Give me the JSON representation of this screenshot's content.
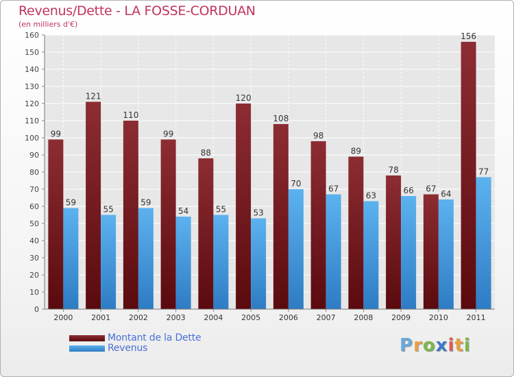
{
  "chart_data": {
    "type": "bar",
    "title": "Revenus/Dette - LA FOSSE-CORDUAN",
    "subtitle": "(en milliers d'€)",
    "xlabel": "",
    "ylabel": "",
    "categories": [
      "2000",
      "2001",
      "2002",
      "2003",
      "2004",
      "2005",
      "2006",
      "2007",
      "2008",
      "2009",
      "2010",
      "2011"
    ],
    "series": [
      {
        "name": "Montant de la Dette",
        "color": "#7a1e22",
        "values": [
          99,
          121,
          110,
          99,
          88,
          120,
          108,
          98,
          89,
          78,
          67,
          156
        ]
      },
      {
        "name": "Revenus",
        "color": "#4aa3e6",
        "values": [
          59,
          55,
          59,
          54,
          55,
          53,
          70,
          67,
          63,
          66,
          64,
          77
        ]
      }
    ],
    "ylim": [
      0,
      160
    ],
    "yticks": [
      "0",
      "10",
      "20",
      "30",
      "40",
      "50",
      "60",
      "70",
      "80",
      "90",
      "100",
      "110",
      "120",
      "130",
      "140",
      "150",
      "160"
    ],
    "grid": true,
    "legend": "bottom-left"
  },
  "brand": {
    "letters": [
      "P",
      "r",
      "o",
      "x",
      "i",
      "t",
      "i"
    ],
    "colors": [
      "#6aa8d8",
      "#e8a040",
      "#7cb84a",
      "#3a78c8",
      "#e05a5a",
      "#e8a040",
      "#7cb84a"
    ]
  }
}
